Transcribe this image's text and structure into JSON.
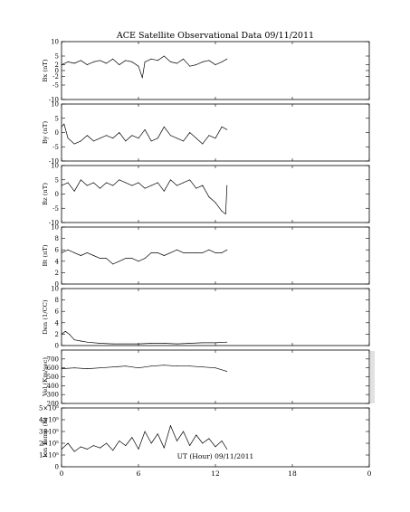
{
  "title": "ACE Satellite Observational Data   09/11/2011",
  "xaxis": {
    "label": "UT (Hour)   09/11/2011",
    "ticks": [
      "0",
      "6",
      "12",
      "18",
      "0"
    ],
    "range_hours": [
      0,
      24
    ]
  },
  "chart_data": [
    {
      "type": "line",
      "ylabel": "Bx (nT)",
      "ylim": [
        -10,
        10
      ],
      "yticks": [
        "10",
        "5",
        "2",
        "0",
        "-2",
        "-5",
        "-10"
      ],
      "x": [
        0,
        0.5,
        1,
        1.5,
        2,
        2.5,
        3,
        3.5,
        4,
        4.5,
        5,
        5.5,
        6,
        6.3,
        6.5,
        7,
        7.5,
        8,
        8.5,
        9,
        9.5,
        10,
        10.5,
        11,
        11.5,
        12,
        12.5,
        12.9
      ],
      "series": [
        {
          "values": [
            2,
            3,
            2.5,
            3.5,
            2,
            3,
            3.5,
            2.5,
            4,
            2,
            3.5,
            3,
            1.5,
            -2.5,
            3,
            4,
            3.5,
            5,
            3,
            2.5,
            4,
            1.5,
            2,
            3,
            3.5,
            2,
            3,
            4
          ]
        }
      ]
    },
    {
      "type": "line",
      "ylabel": "By (nT)",
      "ylim": [
        -10,
        10
      ],
      "yticks": [
        "10",
        "5",
        "0",
        "-5",
        "-10"
      ],
      "x": [
        0,
        0.2,
        0.5,
        1,
        1.5,
        2,
        2.5,
        3,
        3.5,
        4,
        4.5,
        5,
        5.5,
        6,
        6.5,
        7,
        7.5,
        8,
        8.5,
        9,
        9.5,
        10,
        10.5,
        11,
        11.5,
        12,
        12.5,
        12.9
      ],
      "series": [
        {
          "values": [
            2,
            3,
            -2,
            -4,
            -3,
            -1,
            -3,
            -2,
            -1,
            -2,
            0,
            -3,
            -1,
            -2,
            1,
            -3,
            -2,
            2,
            -1,
            -2,
            -3,
            0,
            -2,
            -4,
            -1,
            -2,
            2,
            1
          ]
        }
      ]
    },
    {
      "type": "line",
      "ylabel": "Bz (nT)",
      "ylim": [
        -10,
        10
      ],
      "yticks": [
        "10",
        "5",
        "0",
        "-5",
        "-10"
      ],
      "x": [
        0,
        0.5,
        1,
        1.5,
        2,
        2.5,
        3,
        3.5,
        4,
        4.5,
        5,
        5.5,
        6,
        6.5,
        7,
        7.5,
        8,
        8.5,
        9,
        9.5,
        10,
        10.5,
        11,
        11.5,
        12,
        12.5,
        12.8,
        12.9
      ],
      "series": [
        {
          "values": [
            3,
            4,
            1,
            5,
            3,
            4,
            2,
            4,
            3,
            5,
            4,
            3,
            4,
            2,
            3,
            4,
            1,
            5,
            3,
            4,
            5,
            2,
            3,
            -1,
            -3,
            -6,
            -7,
            3
          ]
        }
      ]
    },
    {
      "type": "line",
      "ylabel": "Bt (nT)",
      "ylim": [
        0,
        10
      ],
      "yticks": [
        "10",
        "8",
        "6",
        "4",
        "2",
        "0"
      ],
      "x": [
        0,
        0.5,
        1,
        1.5,
        2,
        2.5,
        3,
        3.5,
        4,
        4.5,
        5,
        5.5,
        6,
        6.5,
        7,
        7.5,
        8,
        8.5,
        9,
        9.5,
        10,
        10.5,
        11,
        11.5,
        12,
        12.5,
        12.9
      ],
      "series": [
        {
          "values": [
            5.5,
            6,
            5.5,
            5,
            5.5,
            5,
            4.5,
            4.5,
            3.5,
            4,
            4.5,
            4.5,
            4,
            4.5,
            5.5,
            5.5,
            5,
            5.5,
            6,
            5.5,
            5.5,
            5.5,
            5.5,
            6,
            5.5,
            5.5,
            6
          ]
        }
      ]
    },
    {
      "type": "line",
      "ylabel": "Den (1/CC)",
      "ylim": [
        0,
        10
      ],
      "yticks": [
        "10",
        "8",
        "6",
        "4",
        "2",
        "0"
      ],
      "x": [
        0,
        0.3,
        0.6,
        1,
        1.5,
        2,
        3,
        4,
        5,
        6,
        7,
        8,
        9,
        10,
        11,
        12,
        12.9
      ],
      "series": [
        {
          "values": [
            2,
            2.5,
            2,
            1,
            0.8,
            0.6,
            0.4,
            0.3,
            0.3,
            0.3,
            0.4,
            0.4,
            0.3,
            0.4,
            0.5,
            0.5,
            0.6
          ]
        }
      ]
    },
    {
      "type": "line",
      "ylabel": "Vel (Km/sec)",
      "ylim": [
        200,
        800
      ],
      "yticks": [
        "700",
        "600",
        "500",
        "400",
        "300",
        "200"
      ],
      "x": [
        0,
        1,
        2,
        3,
        4,
        5,
        6,
        7,
        8,
        9,
        10,
        11,
        12,
        12.9
      ],
      "series": [
        {
          "values": [
            590,
            600,
            590,
            600,
            610,
            620,
            600,
            620,
            630,
            620,
            620,
            610,
            600,
            560
          ]
        }
      ]
    },
    {
      "type": "line",
      "ylabel": "Ion Temp (K)",
      "ylim": [
        0,
        500000
      ],
      "yticks": [
        "5×10⁵",
        "4×10⁵",
        "3×10⁵",
        "2×10⁵",
        "1×10⁵",
        "0"
      ],
      "x": [
        0,
        0.5,
        1,
        1.5,
        2,
        2.5,
        3,
        3.5,
        4,
        4.5,
        5,
        5.5,
        6,
        6.5,
        7,
        7.5,
        8,
        8.5,
        9,
        9.5,
        10,
        10.5,
        11,
        11.5,
        12,
        12.5,
        12.9
      ],
      "series": [
        {
          "values": [
            150000,
            200000,
            130000,
            170000,
            150000,
            180000,
            160000,
            200000,
            140000,
            220000,
            180000,
            250000,
            150000,
            300000,
            200000,
            280000,
            160000,
            350000,
            220000,
            300000,
            180000,
            270000,
            200000,
            240000,
            170000,
            220000,
            150000
          ]
        }
      ]
    }
  ]
}
